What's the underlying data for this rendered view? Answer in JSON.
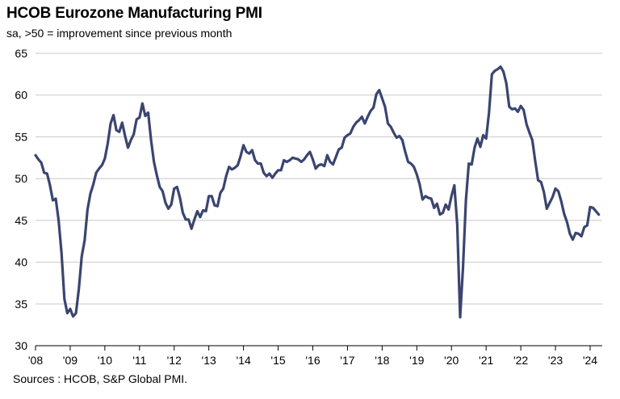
{
  "header": {
    "title": "HCOB Eurozone Manufacturing PMI",
    "subtitle": "sa, >50 = improvement  since previous month"
  },
  "footer": {
    "source": "Sources : HCOB, S&P Global PMI."
  },
  "chart_data": {
    "type": "line",
    "title": "HCOB Eurozone Manufacturing PMI",
    "subtitle": "sa, >50 = improvement  since previous month",
    "xlabel": "",
    "ylabel": "",
    "ylim": [
      30,
      65
    ],
    "yticks": [
      30,
      35,
      40,
      45,
      50,
      55,
      60,
      65
    ],
    "xticks": [
      "'08",
      "'09",
      "'10",
      "'11",
      "'12",
      "'13",
      "'14",
      "'15",
      "'16",
      "'17",
      "'18",
      "'19",
      "'20",
      "'21",
      "'22",
      "'23",
      "'24"
    ],
    "grid": "horizontal",
    "line_color": "#3a4570",
    "start": "2008-01",
    "frequency": "monthly",
    "series": [
      {
        "values": [
          52.8,
          52.3,
          51.9,
          50.7,
          50.6,
          49.2,
          47.4,
          47.6,
          45.0,
          41.1,
          35.6,
          33.9,
          34.4,
          33.5,
          33.9,
          36.8,
          40.7,
          42.6,
          46.3,
          48.2,
          49.3,
          50.7,
          51.2,
          51.6,
          52.4,
          54.2,
          56.6,
          57.6,
          55.8,
          55.6,
          56.7,
          55.1,
          53.7,
          54.6,
          55.3,
          57.1,
          57.3,
          59.0,
          57.5,
          57.9,
          54.6,
          52.0,
          50.4,
          49.0,
          48.5,
          47.1,
          46.4,
          46.9,
          48.8,
          49.0,
          47.7,
          45.9,
          45.1,
          45.1,
          44.0,
          45.1,
          46.1,
          45.4,
          46.2,
          46.1,
          47.9,
          47.9,
          46.8,
          46.7,
          48.3,
          48.8,
          50.3,
          51.4,
          51.1,
          51.3,
          51.6,
          52.7,
          54.0,
          53.2,
          53.0,
          53.4,
          52.2,
          51.8,
          51.8,
          50.7,
          50.3,
          50.6,
          50.1,
          50.6,
          51.0,
          51.0,
          52.2,
          52.0,
          52.2,
          52.5,
          52.4,
          52.3,
          52.0,
          52.3,
          52.8,
          53.2,
          52.3,
          51.2,
          51.6,
          51.7,
          51.5,
          52.8,
          52.0,
          51.7,
          52.6,
          53.5,
          53.7,
          54.9,
          55.2,
          55.4,
          56.2,
          56.7,
          57.0,
          57.4,
          56.6,
          57.4,
          58.1,
          58.5,
          60.1,
          60.6,
          59.6,
          58.6,
          56.6,
          56.2,
          55.5,
          54.9,
          55.1,
          54.6,
          53.2,
          52.0,
          51.8,
          51.4,
          50.5,
          49.3,
          47.5,
          47.9,
          47.7,
          47.6,
          46.5,
          47.0,
          45.7,
          45.9,
          46.9,
          46.3,
          47.9,
          49.2,
          44.5,
          33.4,
          39.4,
          47.4,
          51.8,
          51.7,
          53.7,
          54.8,
          53.8,
          55.2,
          54.8,
          57.9,
          62.5,
          62.9,
          63.1,
          63.4,
          62.8,
          61.4,
          58.6,
          58.3,
          58.4,
          58.0,
          58.7,
          58.2,
          56.5,
          55.5,
          54.6,
          52.1,
          49.8,
          49.6,
          48.4,
          46.4,
          47.1,
          47.8,
          48.8,
          48.5,
          47.3,
          45.8,
          44.8,
          43.4,
          42.7,
          43.5,
          43.4,
          43.1,
          44.2,
          44.4,
          46.6,
          46.5,
          46.1,
          45.7
        ]
      }
    ]
  }
}
